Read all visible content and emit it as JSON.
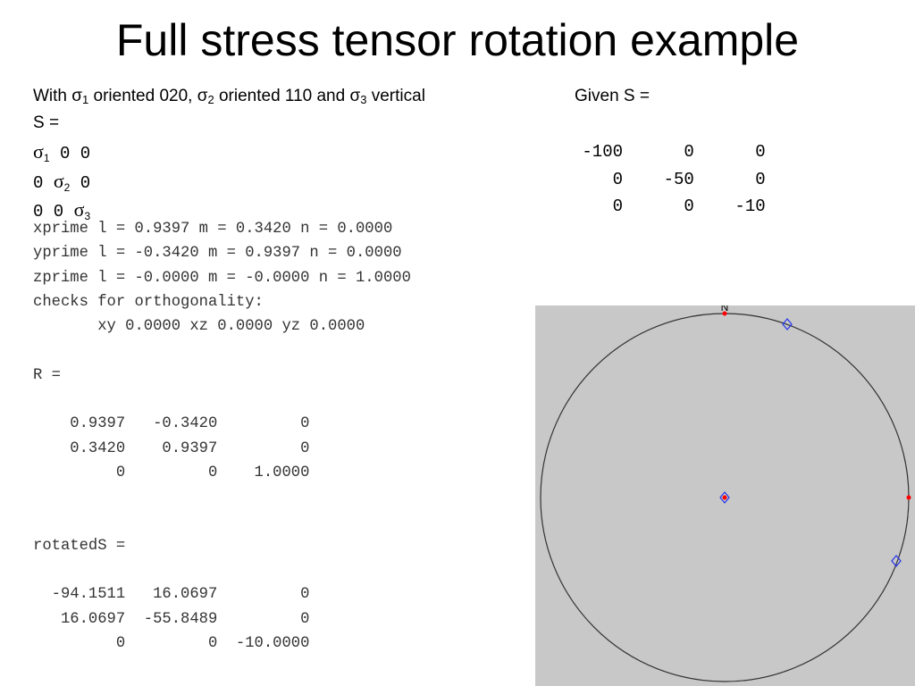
{
  "title": "Full stress tensor rotation example",
  "intro": {
    "with": "With ",
    "sigma": "σ",
    "s1_sub": "1",
    "oriented1": " oriented 020, ",
    "s2_sub": "2",
    "oriented2": " oriented 110 and ",
    "s3_sub": "3",
    "vertical": " vertical"
  },
  "given_label": "Given S =",
  "s_label": "S =",
  "symbolic_matrix": {
    "sigma": "σ",
    "sub1": "1",
    "sub2": "2",
    "sub3": "3",
    "r1_tail": " 0 0",
    "r2_head": "0 ",
    "r2_tail": " 0",
    "r3_head": "0 0 "
  },
  "given_matrix": {
    "rows": [
      " -100      0      0",
      "    0    -50      0",
      "    0      0    -10"
    ]
  },
  "console_lines": [
    "xprime l = 0.9397 m = 0.3420 n = 0.0000",
    "yprime l = -0.3420 m = 0.9397 n = 0.0000",
    "zprime l = -0.0000 m = -0.0000 n = 1.0000",
    "checks for orthogonality:",
    "       xy 0.0000 xz 0.0000 yz 0.0000",
    "",
    "R =",
    "",
    "    0.9397   -0.3420         0",
    "    0.3420    0.9397         0",
    "         0         0    1.0000",
    "",
    "",
    "rotatedS =",
    "",
    "  -94.1511   16.0697         0",
    "   16.0697  -55.8489         0",
    "         0         0  -10.0000"
  ],
  "stereonet": {
    "north_label": "N",
    "background": "#c8c8c8",
    "circle_color": "#333333",
    "pole_color": "#ff0000",
    "axis_marker_color": "#2233ee"
  }
}
